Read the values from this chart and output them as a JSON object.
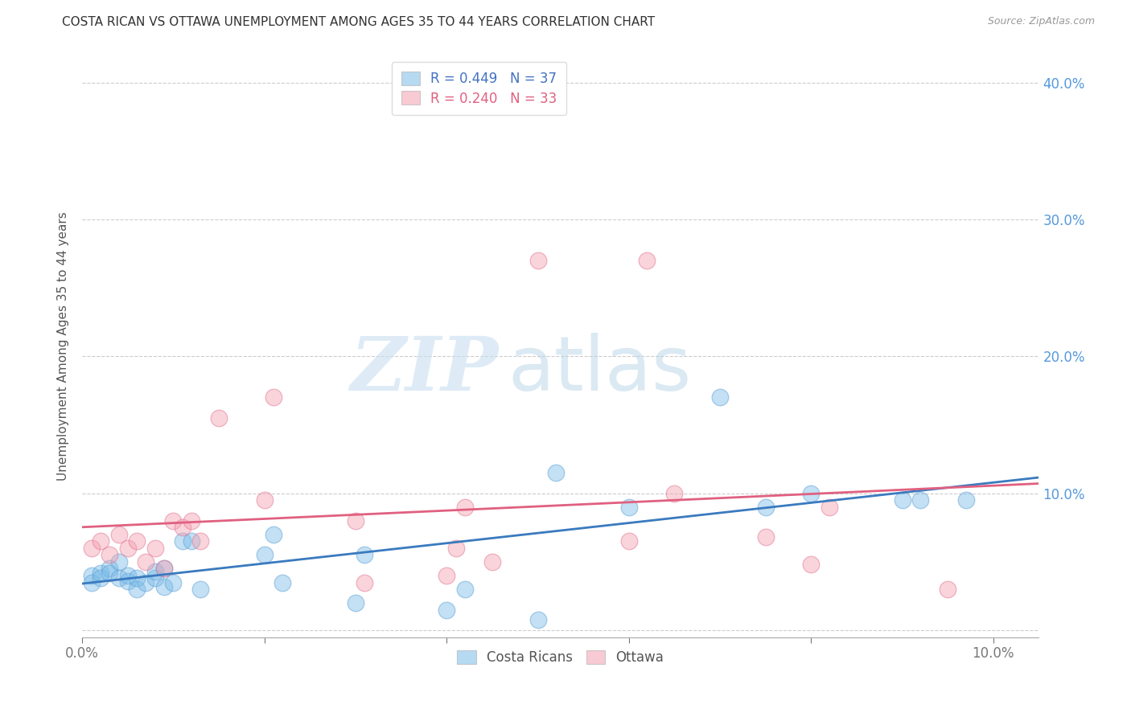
{
  "title": "COSTA RICAN VS OTTAWA UNEMPLOYMENT AMONG AGES 35 TO 44 YEARS CORRELATION CHART",
  "source": "Source: ZipAtlas.com",
  "ylabel": "Unemployment Among Ages 35 to 44 years",
  "xlim": [
    0.0,
    0.105
  ],
  "ylim": [
    -0.005,
    0.42
  ],
  "xticks": [
    0.0,
    0.1
  ],
  "yticks": [
    0.0,
    0.1,
    0.2,
    0.3,
    0.4
  ],
  "ytick_labels_right": [
    "",
    "10.0%",
    "20.0%",
    "30.0%",
    "40.0%"
  ],
  "xtick_labels": [
    "0.0%",
    "10.0%"
  ],
  "blue_color": "#7bbce8",
  "pink_color": "#f4a0b0",
  "blue_edge_color": "#5a9fd4",
  "pink_edge_color": "#e07090",
  "blue_line_color": "#3a7abf",
  "pink_line_color": "#e06080",
  "right_tick_color": "#5599dd",
  "background_color": "#ffffff",
  "grid_color": "#cccccc",
  "title_color": "#333333",
  "costa_ricans_x": [
    0.001,
    0.001,
    0.002,
    0.002,
    0.003,
    0.003,
    0.004,
    0.004,
    0.005,
    0.005,
    0.006,
    0.006,
    0.007,
    0.008,
    0.008,
    0.009,
    0.009,
    0.01,
    0.011,
    0.012,
    0.013,
    0.02,
    0.021,
    0.022,
    0.03,
    0.031,
    0.04,
    0.042,
    0.05,
    0.052,
    0.06,
    0.07,
    0.075,
    0.08,
    0.09,
    0.092,
    0.097
  ],
  "costa_ricans_y": [
    0.04,
    0.035,
    0.042,
    0.038,
    0.045,
    0.042,
    0.05,
    0.038,
    0.036,
    0.04,
    0.03,
    0.038,
    0.035,
    0.038,
    0.043,
    0.045,
    0.032,
    0.035,
    0.065,
    0.065,
    0.03,
    0.055,
    0.07,
    0.035,
    0.02,
    0.055,
    0.015,
    0.03,
    0.008,
    0.115,
    0.09,
    0.17,
    0.09,
    0.1,
    0.095,
    0.095,
    0.095
  ],
  "ottawa_x": [
    0.001,
    0.002,
    0.003,
    0.004,
    0.005,
    0.006,
    0.007,
    0.008,
    0.009,
    0.01,
    0.011,
    0.012,
    0.013,
    0.015,
    0.02,
    0.021,
    0.03,
    0.031,
    0.04,
    0.041,
    0.042,
    0.045,
    0.05,
    0.06,
    0.062,
    0.065,
    0.075,
    0.08,
    0.082,
    0.095
  ],
  "ottawa_y": [
    0.06,
    0.065,
    0.055,
    0.07,
    0.06,
    0.065,
    0.05,
    0.06,
    0.045,
    0.08,
    0.075,
    0.08,
    0.065,
    0.155,
    0.095,
    0.17,
    0.08,
    0.035,
    0.04,
    0.06,
    0.09,
    0.05,
    0.27,
    0.065,
    0.27,
    0.1,
    0.068,
    0.048,
    0.09,
    0.03
  ]
}
